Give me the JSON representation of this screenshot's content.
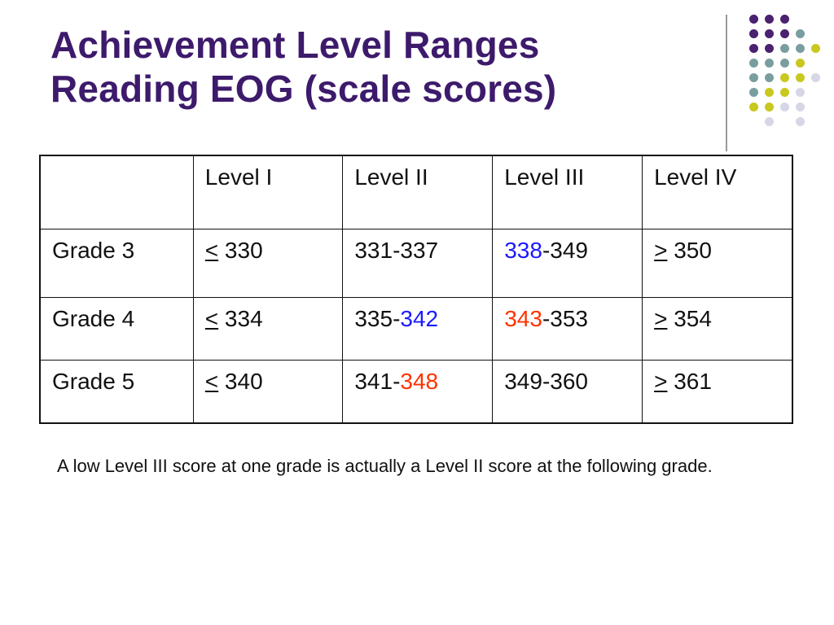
{
  "slide": {
    "title_line1": "Achievement Level Ranges",
    "title_line2": "Reading EOG (scale scores)",
    "note": "A low Level III score at one grade is actually a Level II score at the following grade."
  },
  "colors": {
    "title": "#3d1a6b",
    "highlight_blue": "#1a1aff",
    "highlight_red": "#ff3300",
    "dot_purple": "#4a2270",
    "dot_teal": "#7a9e9f",
    "dot_yellow": "#c8c820",
    "dot_lavender": "#d6d6e6"
  },
  "table": {
    "headers": [
      "",
      "Level I",
      "Level II",
      "Level III",
      "Level IV"
    ],
    "rows": [
      {
        "grade": "Grade 3",
        "level1": {
          "symbol": "<",
          "value": " 330"
        },
        "level2": {
          "start": "331",
          "sep": "-",
          "end": "337"
        },
        "level3": {
          "start": "338",
          "sep": "-",
          "end": "349"
        },
        "level4": {
          "symbol": ">",
          "value": " 350"
        }
      },
      {
        "grade": "Grade 4",
        "level1": {
          "symbol": "<",
          "value": " 334"
        },
        "level2": {
          "start": "335",
          "sep": "-",
          "end": "342"
        },
        "level3": {
          "start": "343",
          "sep": "-",
          "end": "353"
        },
        "level4": {
          "symbol": ">",
          "value": " 354"
        }
      },
      {
        "grade": "Grade 5",
        "level1": {
          "symbol": "<",
          "value": " 340"
        },
        "level2": {
          "start": "341",
          "sep": "-",
          "end": "348"
        },
        "level3": {
          "start": "349",
          "sep": "-",
          "end": "360"
        },
        "level4": {
          "symbol": ">",
          "value": " 361"
        }
      }
    ]
  }
}
